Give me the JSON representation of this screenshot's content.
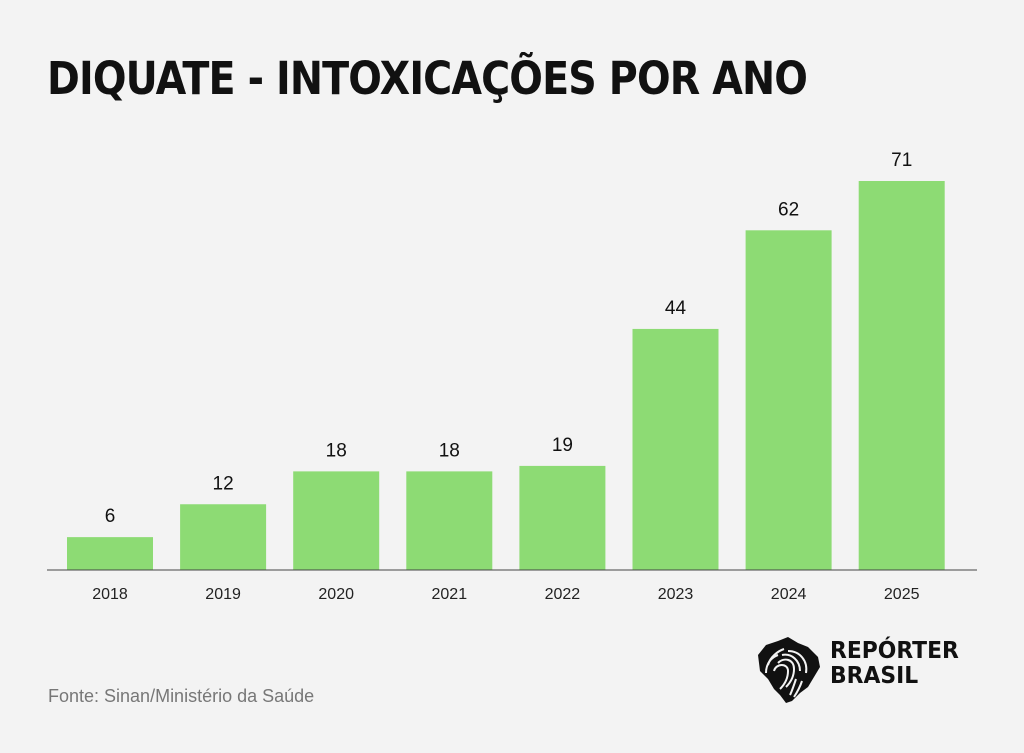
{
  "chart_data": {
    "type": "bar",
    "title": "DIQUATE - INTOXICAÇÕES POR ANO",
    "categories": [
      "2018",
      "2019",
      "2020",
      "2021",
      "2022",
      "2023",
      "2024",
      "2025"
    ],
    "values": [
      6,
      12,
      18,
      18,
      19,
      44,
      62,
      71
    ],
    "xlabel": "",
    "ylabel": "",
    "ylim": [
      0,
      71
    ],
    "grid": false,
    "bar_color": "#8ddb74",
    "data_labels": true
  },
  "source": "Fonte: Sinan/Ministério da Saúde",
  "logo": {
    "line1": "REPÓRTER",
    "line2": "BRASIL"
  }
}
